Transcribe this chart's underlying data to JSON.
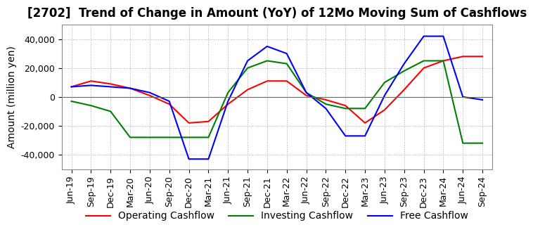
{
  "title": "[2702]  Trend of Change in Amount (YoY) of 12Mo Moving Sum of Cashflows",
  "ylabel": "Amount (million yen)",
  "title_fontsize": 12,
  "label_fontsize": 10,
  "tick_fontsize": 9,
  "ylim": [
    -50000,
    50000
  ],
  "yticks": [
    -40000,
    -20000,
    0,
    20000,
    40000
  ],
  "background_color": "#ffffff",
  "grid_color": "#aaaaaa",
  "dates": [
    "Jun-19",
    "Sep-19",
    "Dec-19",
    "Mar-20",
    "Jun-20",
    "Sep-20",
    "Dec-20",
    "Mar-21",
    "Jun-21",
    "Sep-21",
    "Dec-21",
    "Mar-22",
    "Jun-22",
    "Sep-22",
    "Dec-22",
    "Mar-23",
    "Jun-23",
    "Sep-23",
    "Dec-23",
    "Mar-24",
    "Jun-24",
    "Sep-24"
  ],
  "operating": [
    7000,
    11000,
    9000,
    6000,
    1000,
    -5000,
    -18000,
    -17000,
    -5000,
    5000,
    11000,
    11000,
    1000,
    -2000,
    -6000,
    -18000,
    -9000,
    5000,
    20000,
    25000,
    28000,
    28000
  ],
  "investing": [
    -3000,
    -6000,
    -10000,
    -28000,
    -28000,
    -28000,
    -28000,
    -28000,
    3000,
    20000,
    25000,
    23000,
    3000,
    -5000,
    -8000,
    -8000,
    10000,
    18000,
    25000,
    25000,
    -32000,
    -32000
  ],
  "free": [
    7000,
    8000,
    7000,
    6000,
    3000,
    -3000,
    -43000,
    -43000,
    -3000,
    25000,
    35000,
    30000,
    3000,
    -8000,
    -27000,
    -27000,
    1000,
    23000,
    42000,
    42000,
    0,
    -2000
  ],
  "operating_color": "#ff0000",
  "investing_color": "#008000",
  "free_color": "#0000ff",
  "legend_labels": [
    "Operating Cashflow",
    "Investing Cashflow",
    "Free Cashflow"
  ]
}
